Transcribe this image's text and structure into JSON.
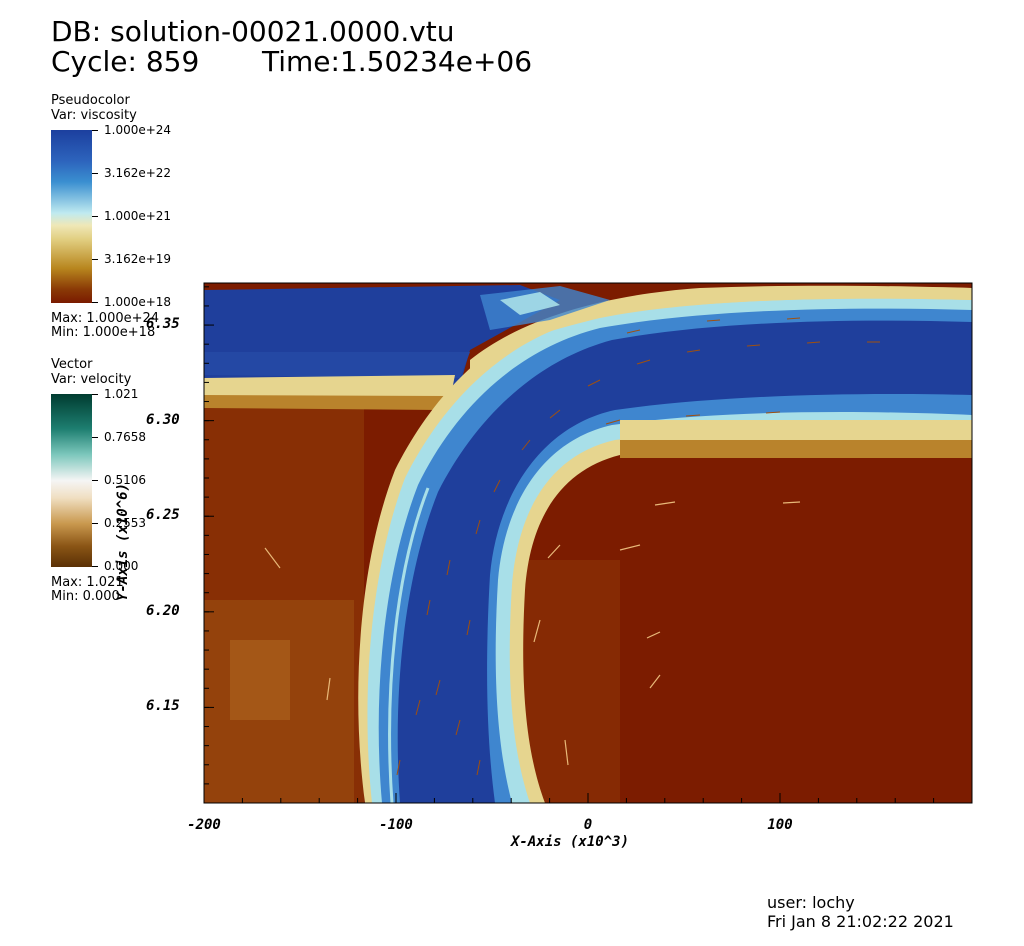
{
  "header": {
    "db_label": "DB: solution-00021.0000.vtu",
    "cycle_label": "Cycle: 859",
    "time_label": "Time:1.50234e+06"
  },
  "legend_pseudocolor": {
    "title": "Pseudocolor",
    "var": "Var: viscosity",
    "ticks": [
      "1.000e+24",
      "3.162e+22",
      "1.000e+21",
      "3.162e+19",
      "1.000e+18"
    ],
    "max": "Max:  1.000e+24",
    "min": "Min:  1.000e+18",
    "colors": [
      "#1c3f9e",
      "#3a7fd0",
      "#bfeaf0",
      "#e8d68a",
      "#b8861e",
      "#7a1a00"
    ]
  },
  "legend_vector": {
    "title": "Vector",
    "var": "Var: velocity",
    "ticks": [
      "1.021",
      "0.7658",
      "0.5106",
      "0.2553",
      "0.000"
    ],
    "max": "Max:  1.021",
    "min": "Min:  0.000",
    "colors": [
      "#003c30",
      "#3ea79a",
      "#f5f5f5",
      "#d7b27a",
      "#5a3005"
    ]
  },
  "footer": {
    "user": "user: lochy",
    "date": "Fri Jan  8 21:02:22 2021"
  },
  "chart_data": {
    "type": "heatmap",
    "title": "",
    "xlabel": "X-Axis (x10^3)",
    "ylabel": "Y-Axis (x10^6)",
    "xlim": [
      -200,
      200
    ],
    "ylim": [
      6.1,
      6.372
    ],
    "x_ticks": [
      "-200",
      "-100",
      "0",
      "100"
    ],
    "x_tick_values": [
      -200,
      -100,
      0,
      100
    ],
    "y_ticks": [
      "6.35",
      "6.30",
      "6.25",
      "6.20",
      "6.15"
    ],
    "y_tick_values": [
      6.35,
      6.3,
      6.25,
      6.2,
      6.15
    ],
    "field": "viscosity",
    "scale": "log",
    "range": [
      1e+18,
      1e+24
    ],
    "colors": {
      "crust_blue": "#1f3f9c",
      "mid_blue": "#3f86cf",
      "cyan": "#a8dfe8",
      "yellow": "#e6d58f",
      "tan": "#b9832c",
      "brown": "#7c1c00"
    }
  }
}
